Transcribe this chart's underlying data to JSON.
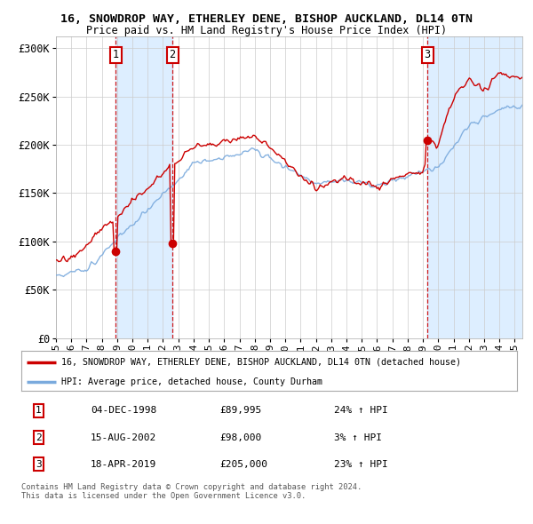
{
  "title1": "16, SNOWDROP WAY, ETHERLEY DENE, BISHOP AUCKLAND, DL14 0TN",
  "title2": "Price paid vs. HM Land Registry's House Price Index (HPI)",
  "ylabel_ticks": [
    "£0",
    "£50K",
    "£100K",
    "£150K",
    "£200K",
    "£250K",
    "£300K"
  ],
  "ytick_values": [
    0,
    50000,
    100000,
    150000,
    200000,
    250000,
    300000
  ],
  "ylim": [
    0,
    312000
  ],
  "xlim_start": 1995.0,
  "xlim_end": 2025.5,
  "xticks": [
    1995,
    1996,
    1997,
    1998,
    1999,
    2000,
    2001,
    2002,
    2003,
    2004,
    2005,
    2006,
    2007,
    2008,
    2009,
    2010,
    2011,
    2012,
    2013,
    2014,
    2015,
    2016,
    2017,
    2018,
    2019,
    2020,
    2021,
    2022,
    2023,
    2024,
    2025
  ],
  "red_color": "#cc0000",
  "blue_color": "#7aaadd",
  "shading_color": "#ddeeff",
  "purchase_dates": [
    1998.92,
    2002.62,
    2019.29
  ],
  "purchase_prices": [
    89995,
    98000,
    205000
  ],
  "purchase_labels": [
    "1",
    "2",
    "3"
  ],
  "legend_red": "16, SNOWDROP WAY, ETHERLEY DENE, BISHOP AUCKLAND, DL14 0TN (detached house)",
  "legend_blue": "HPI: Average price, detached house, County Durham",
  "table_data": [
    [
      "1",
      "04-DEC-1998",
      "£89,995",
      "24% ↑ HPI"
    ],
    [
      "2",
      "15-AUG-2002",
      "£98,000",
      "3% ↑ HPI"
    ],
    [
      "3",
      "18-APR-2019",
      "£205,000",
      "23% ↑ HPI"
    ]
  ],
  "footer": "Contains HM Land Registry data © Crown copyright and database right 2024.\nThis data is licensed under the Open Government Licence v3.0.",
  "background_color": "#ffffff"
}
